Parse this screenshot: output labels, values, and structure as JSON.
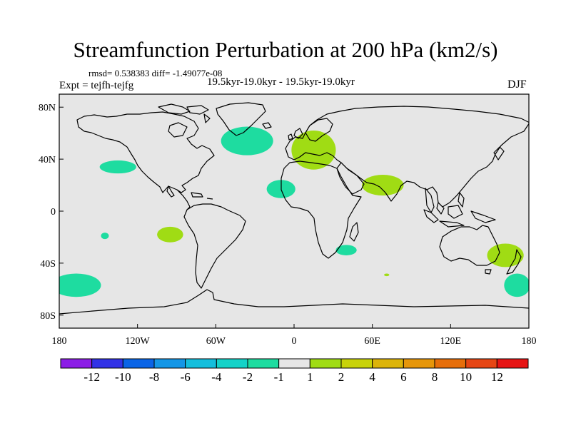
{
  "title": "Streamfunction Perturbation at 200 hPa (km2/s)",
  "stats_line": "rmsd= 0.538383 diff= -1.49077e-08",
  "period_line": "19.5kyr-19.0kyr - 19.5kyr-19.0kyr",
  "experiment_line": "Expt = tejfh-tejfg",
  "season": "DJF",
  "map": {
    "projection": "cylindrical equidistant",
    "lon_range": [
      -180,
      180
    ],
    "lat_range": [
      -90,
      90
    ],
    "background_color": "#e6e6e6",
    "coastline_color": "#000000",
    "lat_ticks": [
      {
        "value": 80,
        "label": "80N"
      },
      {
        "value": 40,
        "label": "40N"
      },
      {
        "value": 0,
        "label": "0"
      },
      {
        "value": -40,
        "label": "40S"
      },
      {
        "value": -80,
        "label": "80S"
      }
    ],
    "lon_ticks": [
      {
        "value": -180,
        "label": "180"
      },
      {
        "value": -120,
        "label": "120W"
      },
      {
        "value": -60,
        "label": "60W"
      },
      {
        "value": 0,
        "label": "0"
      },
      {
        "value": 60,
        "label": "60E"
      },
      {
        "value": 120,
        "label": "120E"
      },
      {
        "value": 180,
        "label": "180"
      }
    ]
  },
  "anomalies": [
    {
      "name": "north-atlantic",
      "lon": -36,
      "lat": 54,
      "dlon": 20,
      "dlat": 11,
      "value": -1.5
    },
    {
      "name": "northeast-pacific",
      "lon": -135,
      "lat": 34,
      "dlon": 14,
      "dlat": 5,
      "value": -1.5
    },
    {
      "name": "west-africa",
      "lon": -10,
      "lat": 17,
      "dlon": 11,
      "dlat": 7,
      "value": -1.5
    },
    {
      "name": "central-pacific",
      "lon": -145,
      "lat": -19,
      "dlon": 3,
      "dlat": 2.5,
      "value": -1.5
    },
    {
      "name": "south-africa-coast",
      "lon": 40,
      "lat": -30,
      "dlon": 8,
      "dlat": 4,
      "value": -1.5
    },
    {
      "name": "south-pacific-west",
      "lon": -167,
      "lat": -57,
      "dlon": 19,
      "dlat": 9,
      "value": -1.5
    },
    {
      "name": "south-pacific-east",
      "lon": 171,
      "lat": -57,
      "dlon": 10,
      "dlat": 9,
      "value": -1.5
    },
    {
      "name": "europe",
      "lon": 15,
      "lat": 47,
      "dlon": 17,
      "dlat": 15,
      "value": 1.5
    },
    {
      "name": "arabian-sea",
      "lon": 68,
      "lat": 20,
      "dlon": 16,
      "dlat": 8,
      "value": 1.5
    },
    {
      "name": "southeast-pacific",
      "lon": -95,
      "lat": -18,
      "dlon": 10,
      "dlat": 6,
      "value": 1.5
    },
    {
      "name": "new-zealand",
      "lon": 162,
      "lat": -34,
      "dlon": 14,
      "dlat": 9,
      "value": 1.5
    },
    {
      "name": "south-indian-ocean",
      "lon": 71,
      "lat": -49,
      "dlon": 2,
      "dlat": 1,
      "value": 1.5
    }
  ],
  "colorbar": {
    "colors": [
      "#8c1ee6",
      "#3232e6",
      "#0a64e6",
      "#1496e6",
      "#14bedc",
      "#14d2c8",
      "#1edca0",
      "#e6e6e6",
      "#a0dc14",
      "#c8d20a",
      "#dcb40a",
      "#e6960a",
      "#e66e0a",
      "#e64614",
      "#e61414"
    ],
    "labels": [
      "-12",
      "-10",
      "-8",
      "-6",
      "-4",
      "-2",
      "-1",
      "1",
      "2",
      "4",
      "6",
      "8",
      "10",
      "12"
    ]
  }
}
